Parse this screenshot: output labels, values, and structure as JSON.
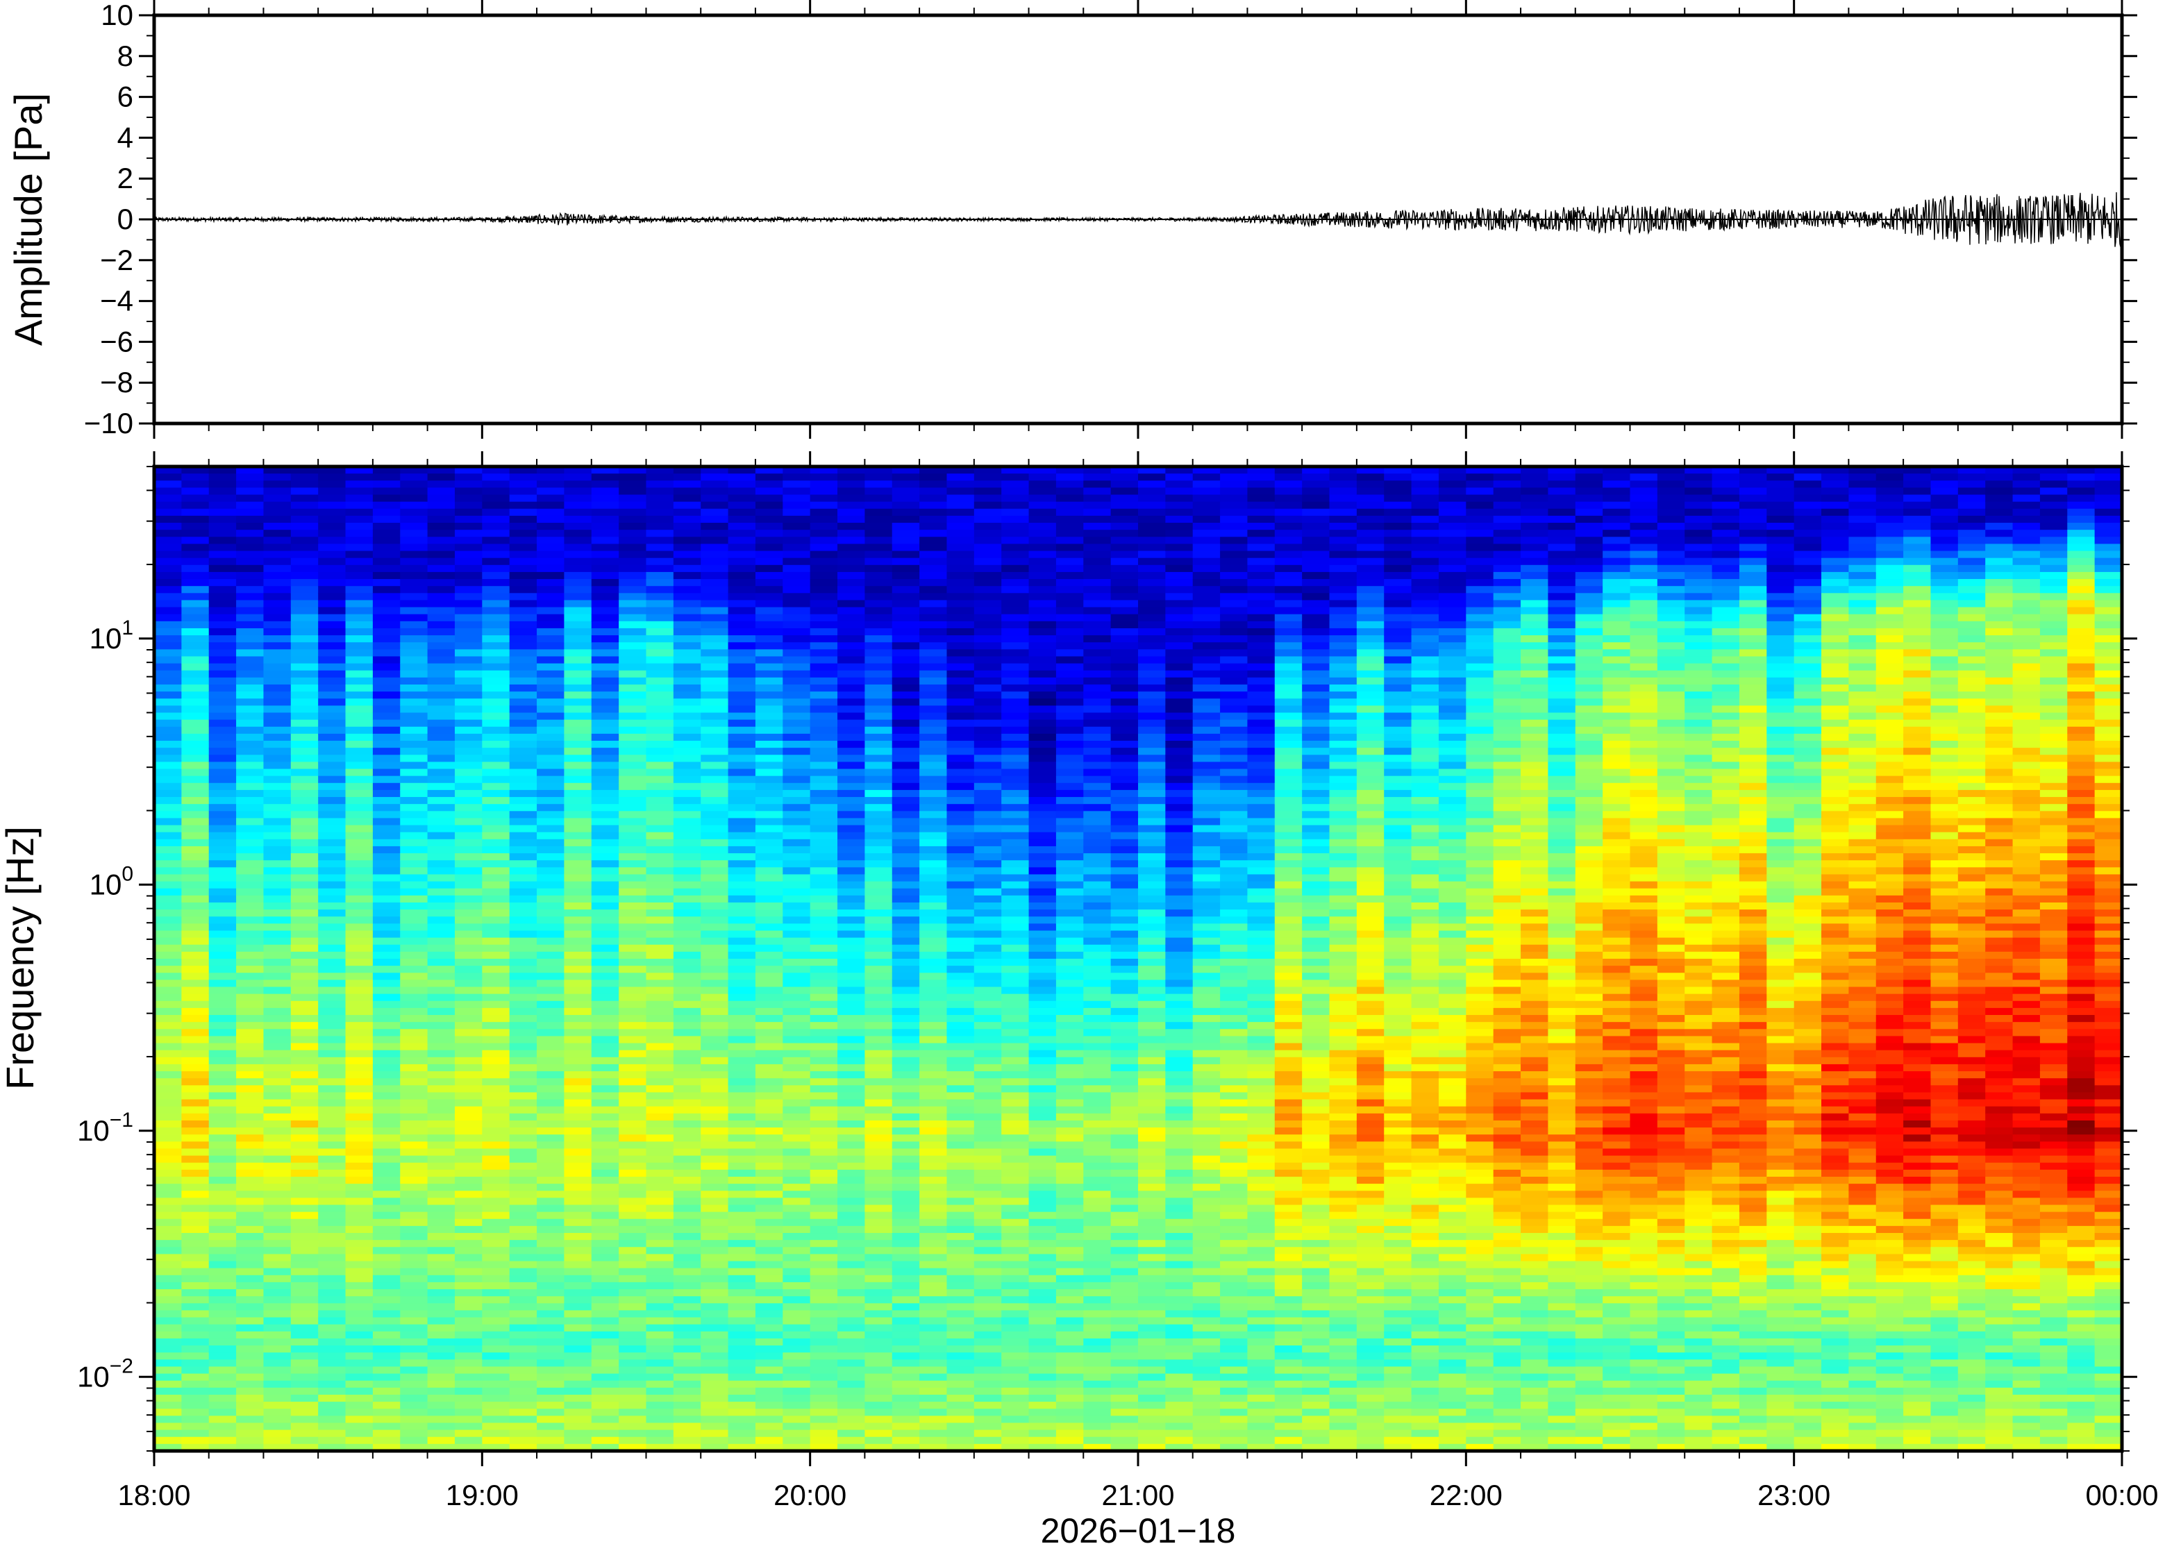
{
  "chart_data": [
    {
      "type": "line",
      "ylabel": "Amplitude [Pa]",
      "ylim": [
        -10,
        10
      ],
      "yticks": [
        10,
        8,
        6,
        4,
        2,
        0,
        -2,
        -4,
        -6,
        -8,
        -10
      ],
      "ytick_labels": [
        "10",
        "8",
        "6",
        "4",
        "2",
        "0",
        "−2",
        "−4",
        "−6",
        "−8",
        "−10"
      ],
      "xlim": [
        "18:00",
        "00:00"
      ],
      "series": [
        {
          "x_hours": [
            0,
            0.5,
            1,
            1.25,
            1.5,
            2,
            2.5,
            3,
            3.25,
            3.5,
            3.75,
            4,
            4.25,
            4.5,
            4.75,
            5,
            5.25,
            5.4,
            5.5,
            5.75,
            6
          ],
          "amplitude_envelope_pa": [
            0.1,
            0.1,
            0.1,
            0.3,
            0.15,
            0.1,
            0.08,
            0.08,
            0.1,
            0.3,
            0.45,
            0.55,
            0.6,
            0.7,
            0.55,
            0.45,
            0.4,
            1.0,
            1.3,
            1.2,
            1.4
          ]
        }
      ],
      "grid": false
    },
    {
      "type": "heatmap",
      "ylabel": "Frequency [Hz]",
      "yscale": "log",
      "ylim": [
        0.005,
        50
      ],
      "yticks": [
        0.01,
        0.1,
        1,
        10
      ],
      "ytick_labels": [
        {
          "base": "10",
          "exp": "−2"
        },
        {
          "base": "10",
          "exp": "−1"
        },
        {
          "base": "10",
          "exp": "0"
        },
        {
          "base": "10",
          "exp": "1"
        }
      ],
      "xlabel": "2026−01−18",
      "xticks": [
        "18:00",
        "19:00",
        "20:00",
        "21:00",
        "22:00",
        "23:00",
        "00:00"
      ],
      "colormap": "jet",
      "x_hours": [
        0,
        0.5,
        1,
        1.5,
        2,
        2.5,
        3,
        3.5,
        4,
        4.5,
        5,
        5.5,
        6
      ],
      "noise_top_hz": [
        20,
        18,
        20,
        22,
        16,
        11,
        9,
        14,
        20,
        24,
        22,
        30,
        32
      ],
      "high_level": [
        0.28,
        0.24,
        0.3,
        0.34,
        0.22,
        0.14,
        0.1,
        0.26,
        0.36,
        0.42,
        0.4,
        0.52,
        0.56
      ],
      "peak_level": [
        0.62,
        0.58,
        0.6,
        0.58,
        0.56,
        0.55,
        0.52,
        0.68,
        0.74,
        0.8,
        0.78,
        0.9,
        0.92
      ],
      "peak_hz": 0.1,
      "grid": false
    }
  ],
  "colors": {
    "axis": "#000000",
    "trace": "#000000",
    "background": "#ffffff"
  }
}
